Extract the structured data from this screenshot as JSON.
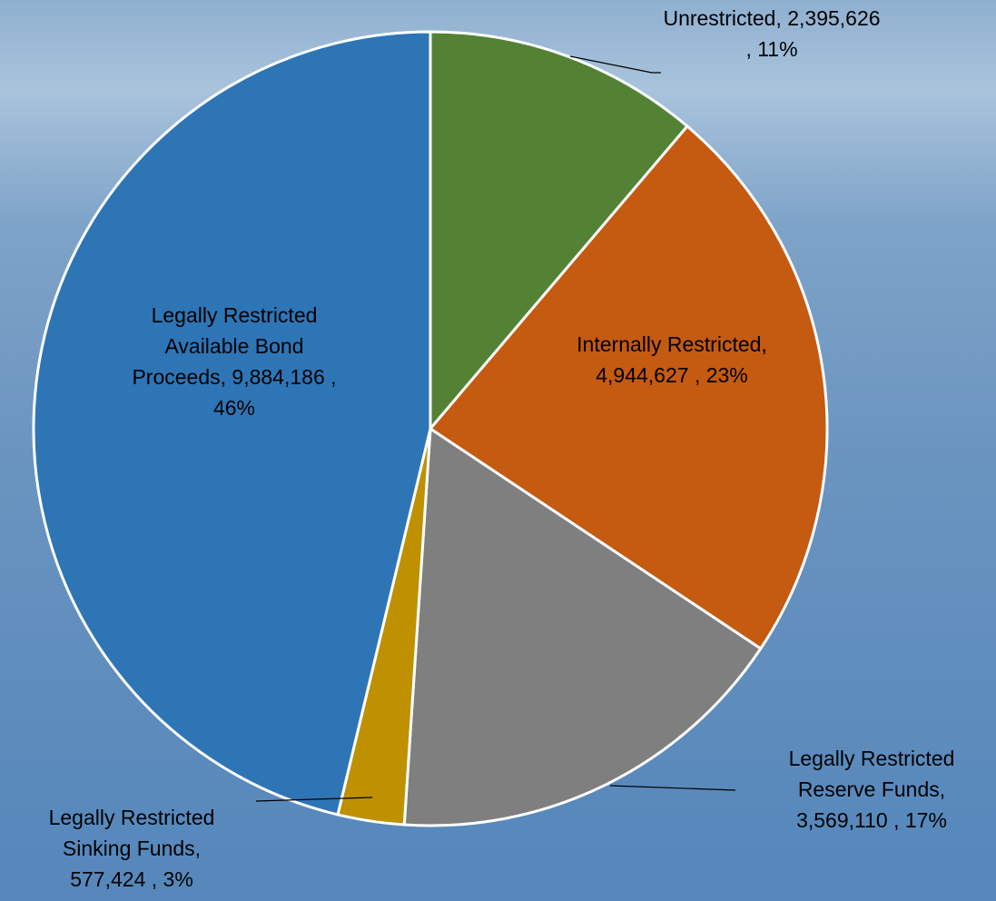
{
  "chart_data": {
    "type": "pie",
    "categories": [
      "Unrestricted,",
      "Internally Restricted,",
      "Legally Restricted Reserve Funds,",
      "Legally Restricted Sinking Funds,",
      "Legally Restricted Available Bond Proceeds,"
    ],
    "values": [
      2395626,
      4944627,
      3569110,
      577424,
      9884186
    ],
    "value_labels": [
      "2,395,626 , 11%",
      "4,944,627 , 23%",
      "3,569,110 , 17%",
      "577,424 , 3%",
      "9,884,186 , 46%"
    ],
    "colors": [
      "#548235",
      "#c55a11",
      "#7f7f7f",
      "#bf9000",
      "#2e75b6"
    ]
  }
}
